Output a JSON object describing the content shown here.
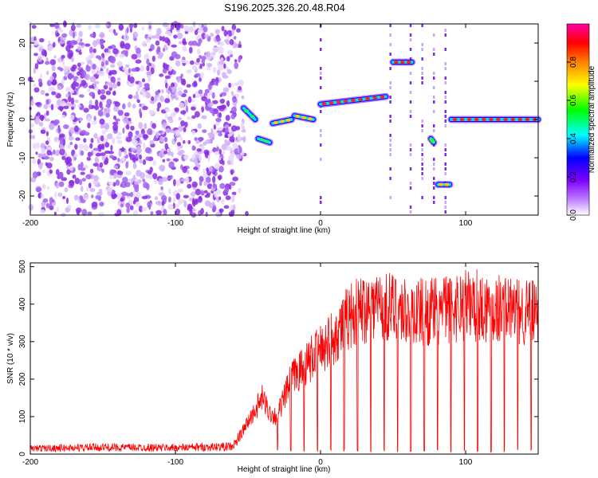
{
  "figure_title": "S196.2025.326.20.48.R04",
  "chart_data": [
    {
      "type": "heatmap",
      "title": "S196.2025.326.20.48.R04",
      "xlabel": "Height of straight line (km)",
      "ylabel": "Frequency (Hz)",
      "xlim": [
        -200,
        150
      ],
      "ylim": [
        -25,
        25
      ],
      "x_ticks": [
        -200,
        -100,
        0,
        100
      ],
      "x_tick_labels": [
        "-200",
        "-100",
        "0",
        "100"
      ],
      "y_ticks": [
        20,
        10,
        0,
        -10,
        -20
      ],
      "y_tick_labels": [
        "20",
        "10",
        "0",
        "-10",
        "-20"
      ],
      "colorbar": {
        "label": "Normalized spectral amplitude",
        "range": [
          0,
          1
        ],
        "ticks": [
          0.0,
          0.2,
          0.4,
          0.6,
          0.8
        ],
        "tick_labels": [
          "0.0",
          "0.2",
          "0.4",
          "0.6",
          "0.8"
        ],
        "colormap": [
          "#ffffff",
          "#8000ff",
          "#0000ff",
          "#00ffff",
          "#00ff00",
          "#ffff00",
          "#ff0000",
          "#ff0080"
        ]
      },
      "noise_region_x": [
        -200,
        -55
      ],
      "ridge_segments": [
        {
          "x": [
            -53,
            -45
          ],
          "y": [
            3,
            0
          ],
          "amplitude": 0.4
        },
        {
          "x": [
            -43,
            -35
          ],
          "y": [
            -5,
            -6
          ],
          "amplitude": 0.35
        },
        {
          "x": [
            -33,
            -20
          ],
          "y": [
            -1,
            0
          ],
          "amplitude": 0.55
        },
        {
          "x": [
            -18,
            -5
          ],
          "y": [
            1,
            0
          ],
          "amplitude": 0.7
        },
        {
          "x": [
            0,
            45
          ],
          "y": [
            4,
            6
          ],
          "amplitude": 0.85
        },
        {
          "x": [
            50,
            63
          ],
          "y": [
            15,
            15
          ],
          "amplitude": 0.9
        },
        {
          "x": [
            76,
            78
          ],
          "y": [
            -5,
            -6
          ],
          "amplitude": 0.4
        },
        {
          "x": [
            81,
            89
          ],
          "y": [
            -17,
            -17
          ],
          "amplitude": 0.6
        },
        {
          "x": [
            90,
            150
          ],
          "y": [
            0,
            0
          ],
          "amplitude": 0.9
        }
      ],
      "grid": false
    },
    {
      "type": "line",
      "xlabel": "Height of straight line (km)",
      "ylabel": "SNR (10 * v/v)",
      "xlim": [
        -200,
        150
      ],
      "ylim": [
        0,
        510
      ],
      "x_ticks": [
        -200,
        -100,
        0,
        100
      ],
      "x_tick_labels": [
        "-200",
        "-100",
        "0",
        "100"
      ],
      "y_ticks": [
        0,
        100,
        200,
        300,
        400,
        500
      ],
      "y_tick_labels": [
        "0",
        "100",
        "200",
        "300",
        "400",
        "500"
      ],
      "line_color": "#ff0000",
      "series": [
        {
          "x": [
            -200,
            -150,
            -100,
            -60,
            -40,
            -35,
            -30,
            -20,
            -10,
            0,
            10,
            20,
            30,
            40,
            60,
            80,
            100,
            120,
            140,
            150
          ],
          "values": [
            15,
            18,
            17,
            20,
            150,
            110,
            100,
            200,
            240,
            280,
            320,
            370,
            390,
            400,
            380,
            380,
            400,
            390,
            380,
            370
          ]
        }
      ],
      "grid": false
    }
  ]
}
